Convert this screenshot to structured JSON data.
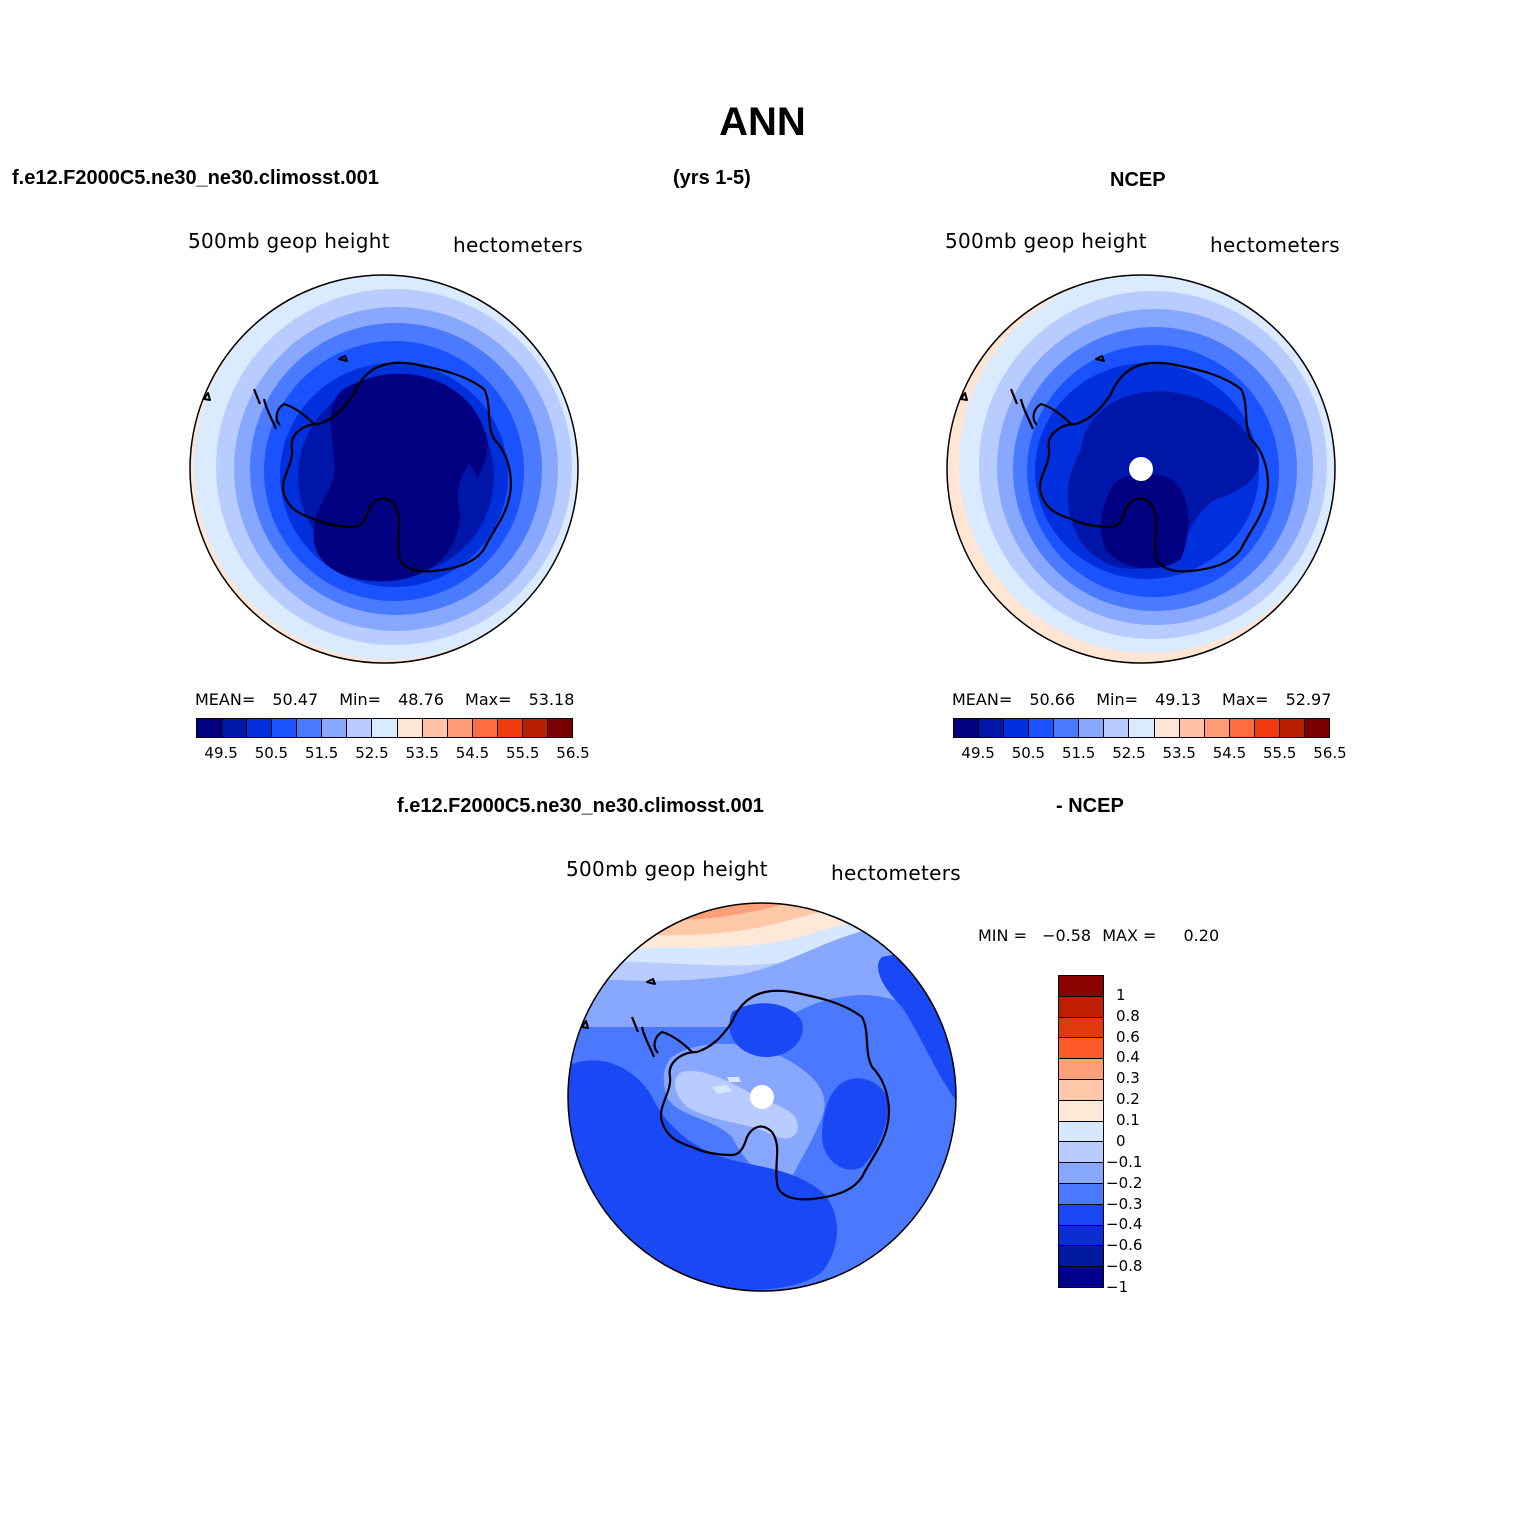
{
  "figure": {
    "title": "ANN",
    "header_left": "f.e12.F2000C5.ne30_ne30.climosst.001",
    "header_mid": "(yrs 1-5)",
    "header_right": "NCEP",
    "diff_header_left": "f.e12.F2000C5.ne30_ne30.climosst.001",
    "diff_header_right": "- NCEP"
  },
  "panels": {
    "model": {
      "var_label": "500mb geop height",
      "units": "hectometers",
      "mean_label": "MEAN=",
      "mean_value": "50.47",
      "min_label": "Min=",
      "min_value": "48.76",
      "max_label": "Max=",
      "max_value": "53.18"
    },
    "ncep": {
      "var_label": "500mb geop height",
      "units": "hectometers",
      "mean_label": "MEAN=",
      "mean_value": "50.66",
      "min_label": "Min=",
      "min_value": "49.13",
      "max_label": "Max=",
      "max_value": "52.97"
    },
    "diff": {
      "var_label": "500mb geop height",
      "units": "hectometers",
      "min_label": "MIN =",
      "min_value": "−0.58",
      "max_label": "MAX =",
      "max_value": "0.20"
    }
  },
  "colorbars": {
    "abs_colors": [
      "#000080",
      "#0016a8",
      "#0030dc",
      "#1a52ff",
      "#4a7aff",
      "#88a8ff",
      "#b8ccff",
      "#daeaff",
      "#ffe6d4",
      "#ffc2a8",
      "#ff9c78",
      "#ff6e40",
      "#f03a10",
      "#b81e00",
      "#7a0000"
    ],
    "abs_labels": [
      "49.5",
      "50.5",
      "51.5",
      "52.5",
      "53.5",
      "54.5",
      "55.5",
      "56.5"
    ],
    "diff_colors": [
      "#8b0000",
      "#c01e00",
      "#e03a0c",
      "#ff5a28",
      "#ffa07a",
      "#ffc8a8",
      "#ffe8d8",
      "#d6e8ff",
      "#b8ccff",
      "#88a8ff",
      "#4a78ff",
      "#1a48f4",
      "#0a2ed0",
      "#001aa0",
      "#00008c"
    ],
    "diff_labels": [
      "1",
      "0.8",
      "0.6",
      "0.4",
      "0.3",
      "0.2",
      "0.1",
      "0",
      "−0.1",
      "−0.2",
      "−0.3",
      "−0.4",
      "−0.6",
      "−0.8",
      "−1"
    ]
  }
}
